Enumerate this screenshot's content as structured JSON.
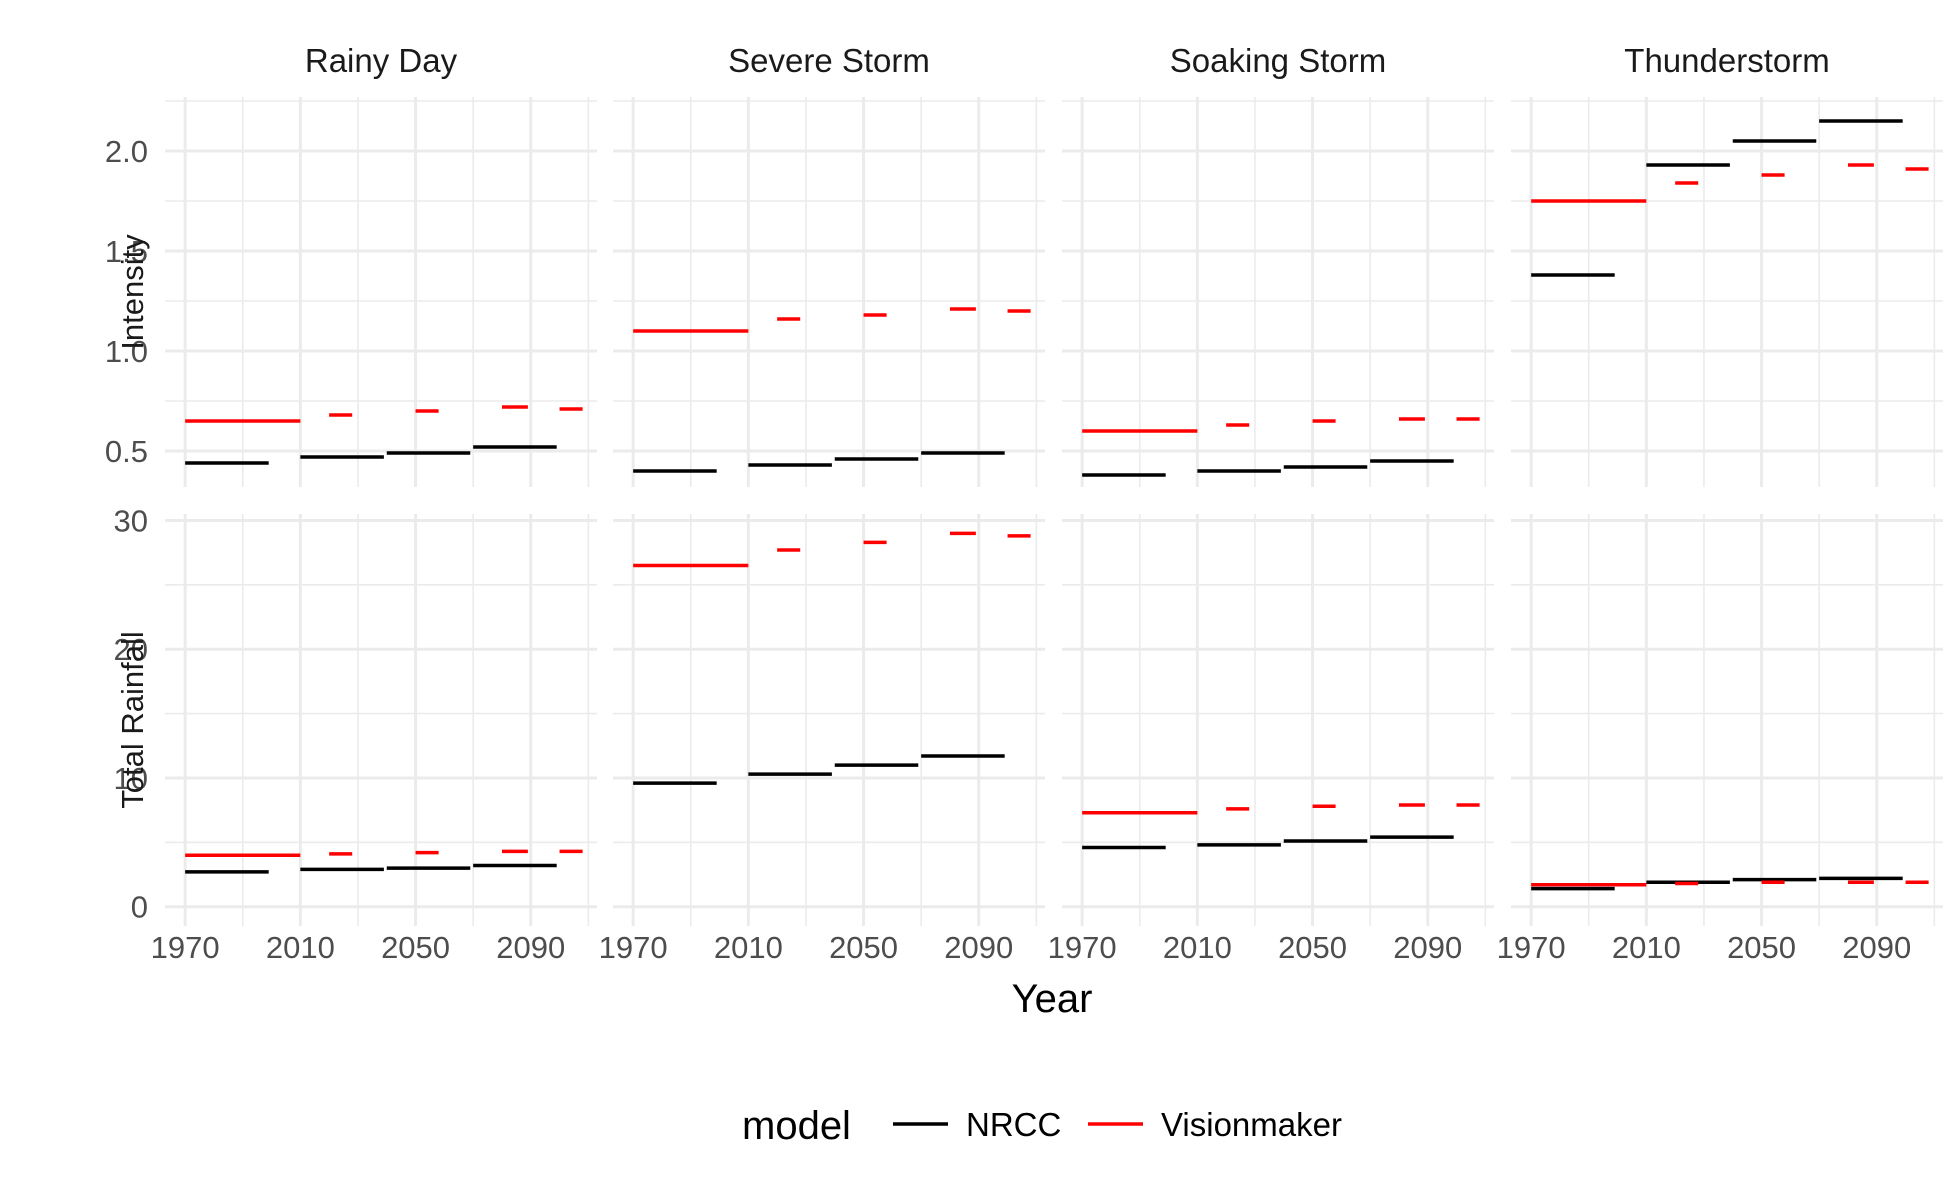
{
  "chart_data": {
    "type": "line",
    "xlabel": "Year",
    "legend": {
      "title": "model",
      "position": "bottom"
    },
    "colors": {
      "NRCC": "#000000",
      "Visionmaker": "#ff0000"
    },
    "series_names": [
      "NRCC",
      "Visionmaker"
    ],
    "facets": {
      "columns": [
        "Rainy Day",
        "Severe Storm",
        "Soaking Storm",
        "Thunderstorm"
      ],
      "rows": [
        "Intensity",
        "Total Rainfall"
      ]
    },
    "x_range": [
      1963,
      2113
    ],
    "x_ticks": [
      1970,
      2010,
      2050,
      2090
    ],
    "rows": {
      "Intensity": {
        "ylim": [
          0.32,
          2.27
        ],
        "yticks": [
          0.5,
          1.0,
          1.5,
          2.0
        ],
        "ytick_labels": [
          "0.5",
          "1.0",
          "1.5",
          "2.0"
        ]
      },
      "Total Rainfall": {
        "ylim": [
          -1.5,
          30.5
        ],
        "yticks": [
          0,
          10,
          20,
          30
        ],
        "ytick_labels": [
          "0",
          "10",
          "20",
          "30"
        ]
      }
    },
    "segments": {
      "NRCC": [
        [
          1970,
          1999
        ],
        [
          2010,
          2039
        ],
        [
          2040,
          2069
        ],
        [
          2070,
          2099
        ]
      ],
      "Visionmaker": [
        [
          1970,
          2010
        ],
        [
          2020,
          2028
        ],
        [
          2050,
          2058
        ],
        [
          2080,
          2089
        ],
        [
          2100,
          2108
        ]
      ]
    },
    "panels": [
      {
        "row": "Intensity",
        "col": "Rainy Day",
        "NRCC": [
          0.44,
          0.47,
          0.49,
          0.52
        ],
        "Visionmaker": [
          0.65,
          0.68,
          0.7,
          0.72,
          0.71
        ]
      },
      {
        "row": "Intensity",
        "col": "Severe Storm",
        "NRCC": [
          0.4,
          0.43,
          0.46,
          0.49
        ],
        "Visionmaker": [
          1.1,
          1.16,
          1.18,
          1.21,
          1.2
        ]
      },
      {
        "row": "Intensity",
        "col": "Soaking Storm",
        "NRCC": [
          0.38,
          0.4,
          0.42,
          0.45
        ],
        "Visionmaker": [
          0.6,
          0.63,
          0.65,
          0.66,
          0.66
        ]
      },
      {
        "row": "Intensity",
        "col": "Thunderstorm",
        "NRCC": [
          1.38,
          1.93,
          2.05,
          2.15
        ],
        "Visionmaker": [
          1.75,
          1.84,
          1.88,
          1.93,
          1.91
        ]
      },
      {
        "row": "Total Rainfall",
        "col": "Rainy Day",
        "NRCC": [
          2.7,
          2.9,
          3.0,
          3.2
        ],
        "Visionmaker": [
          4.0,
          4.1,
          4.2,
          4.3,
          4.3
        ]
      },
      {
        "row": "Total Rainfall",
        "col": "Severe Storm",
        "NRCC": [
          9.6,
          10.3,
          11.0,
          11.7
        ],
        "Visionmaker": [
          26.5,
          27.7,
          28.3,
          29.0,
          28.8
        ]
      },
      {
        "row": "Total Rainfall",
        "col": "Soaking Storm",
        "NRCC": [
          4.6,
          4.8,
          5.1,
          5.4
        ],
        "Visionmaker": [
          7.3,
          7.6,
          7.8,
          7.9,
          7.9
        ]
      },
      {
        "row": "Total Rainfall",
        "col": "Thunderstorm",
        "NRCC": [
          1.4,
          1.9,
          2.1,
          2.2
        ],
        "Visionmaker": [
          1.7,
          1.8,
          1.9,
          1.9,
          1.9
        ]
      }
    ]
  }
}
